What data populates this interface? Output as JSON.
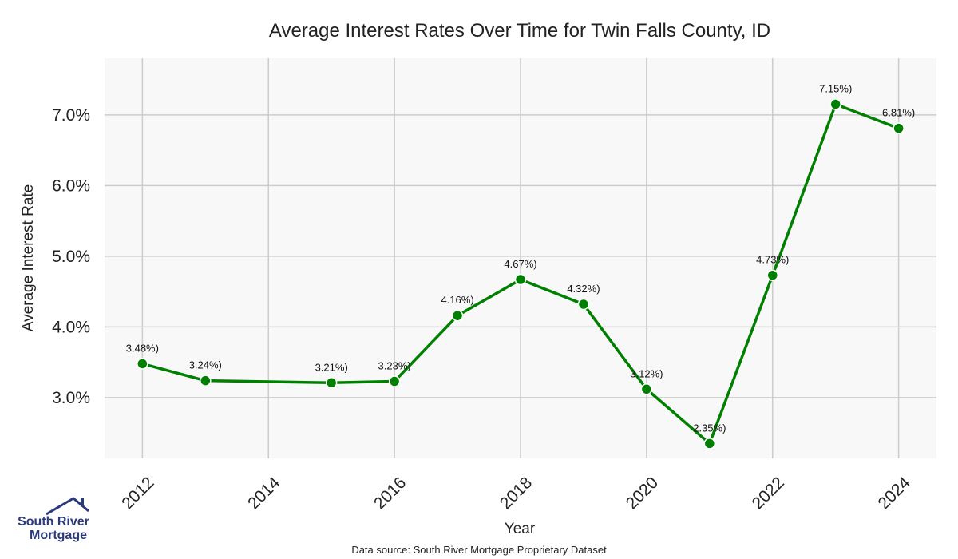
{
  "chart_data": {
    "type": "line",
    "title": "Average Interest Rates Over Time for Twin Falls County, ID",
    "xlabel": "Year",
    "ylabel": "Average Interest Rate",
    "x": [
      2012,
      2013,
      2015,
      2016,
      2017,
      2018,
      2019,
      2020,
      2021,
      2022,
      2023,
      2024
    ],
    "series": [
      {
        "values": [
          3.48,
          3.24,
          3.21,
          3.23,
          4.16,
          4.67,
          4.32,
          3.12,
          2.35,
          4.73,
          7.15,
          6.81
        ],
        "data_labels": [
          "3.48%)",
          "3.24%)",
          "3.21%)",
          "3.23%)",
          "4.16%)",
          "4.67%)",
          "4.32%)",
          "3.12%)",
          "2.35%)",
          "4.73%)",
          "7.15%)",
          "6.81%)"
        ],
        "color": "#008000"
      }
    ],
    "xticks": [
      2012,
      2014,
      2016,
      2018,
      2020,
      2022,
      2024
    ],
    "xtick_labels": [
      "2012",
      "2014",
      "2016",
      "2018",
      "2020",
      "2022",
      "2024"
    ],
    "yticks": [
      3.0,
      4.0,
      5.0,
      6.0,
      7.0
    ],
    "ytick_labels": [
      "3.0%",
      "4.0%",
      "5.0%",
      "6.0%",
      "7.0%"
    ],
    "xlim": [
      2011.4,
      2024.6
    ],
    "ylim": [
      2.14,
      7.8
    ],
    "grid": true,
    "background": "#f8f8f8",
    "grid_color": "#cccccc"
  },
  "footer": {
    "source": "Data source: South River Mortgage Proprietary Dataset"
  },
  "logo": {
    "line1": "South River",
    "line2": "Mortgage",
    "color": "#2b3a7a"
  }
}
